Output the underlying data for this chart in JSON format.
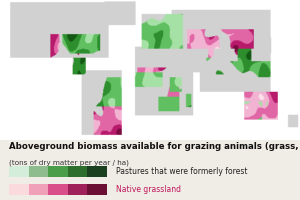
{
  "title": "Aboveground biomass available for grazing animals (grass, leaves)",
  "subtitle": "(tons of dry matter per year / ha)",
  "legend_label_green": "Pastures that were formerly forest",
  "legend_label_pink": "Native grassland",
  "green_colors": [
    "#d4edda",
    "#8fbc8f",
    "#4a9e4a",
    "#2d6e2d",
    "#1a4020"
  ],
  "pink_colors": [
    "#fadadd",
    "#f0a0b8",
    "#d94f8a",
    "#a0205a",
    "#6b0f35"
  ],
  "ocean_color": "#ffffff",
  "land_color": "#d0d0d0",
  "background_color": "#f0ece6",
  "title_fontsize": 6.2,
  "subtitle_fontsize": 5.2,
  "legend_fontsize": 5.5
}
